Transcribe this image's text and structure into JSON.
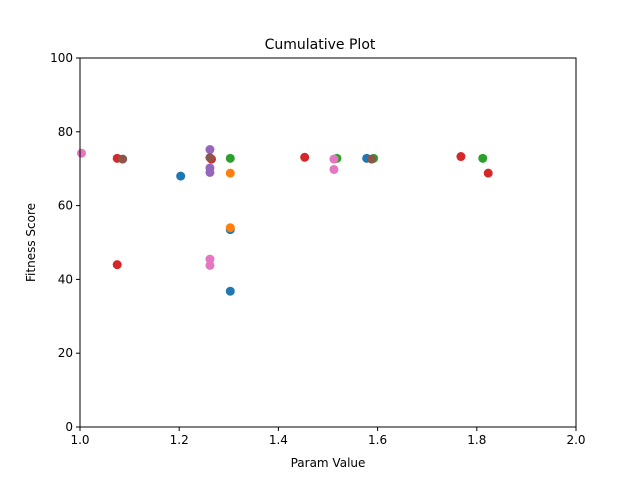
{
  "chart_data": {
    "type": "scatter",
    "title": "Cumulative Plot",
    "xlabel": "Param Value",
    "ylabel": "Fitness Score",
    "xlim": [
      1.0,
      2.0
    ],
    "ylim": [
      0,
      100
    ],
    "xticks": [
      "1.0",
      "1.2",
      "1.4",
      "1.6",
      "1.8",
      "2.0"
    ],
    "yticks": [
      "0",
      "20",
      "40",
      "60",
      "80",
      "100"
    ],
    "grid": false,
    "legend": "none",
    "series": [
      {
        "color": "#1f77b4",
        "points": [
          [
            1.203,
            68.0
          ],
          [
            1.303,
            53.5
          ],
          [
            1.303,
            36.8
          ],
          [
            1.578,
            72.8
          ]
        ]
      },
      {
        "color": "#ff7f0e",
        "points": [
          [
            1.303,
            68.8
          ],
          [
            1.303,
            54.0
          ]
        ]
      },
      {
        "color": "#2ca02c",
        "points": [
          [
            1.303,
            72.8
          ],
          [
            1.518,
            72.8
          ],
          [
            1.592,
            72.8
          ],
          [
            1.812,
            72.8
          ]
        ]
      },
      {
        "color": "#d62728",
        "points": [
          [
            1.075,
            72.8
          ],
          [
            1.075,
            44.0
          ],
          [
            1.265,
            72.6
          ],
          [
            1.453,
            73.1
          ],
          [
            1.768,
            73.3
          ],
          [
            1.823,
            68.8
          ]
        ]
      },
      {
        "color": "#9467bd",
        "points": [
          [
            1.262,
            75.2
          ],
          [
            1.262,
            70.2
          ],
          [
            1.262,
            69.0
          ]
        ]
      },
      {
        "color": "#8c564b",
        "points": [
          [
            1.086,
            72.6
          ],
          [
            1.262,
            73.0
          ],
          [
            1.588,
            72.6
          ]
        ]
      },
      {
        "color": "#e377c2",
        "points": [
          [
            1.003,
            74.2
          ],
          [
            1.262,
            45.5
          ],
          [
            1.262,
            43.8
          ],
          [
            1.512,
            72.6
          ],
          [
            1.512,
            69.8
          ]
        ]
      }
    ]
  }
}
